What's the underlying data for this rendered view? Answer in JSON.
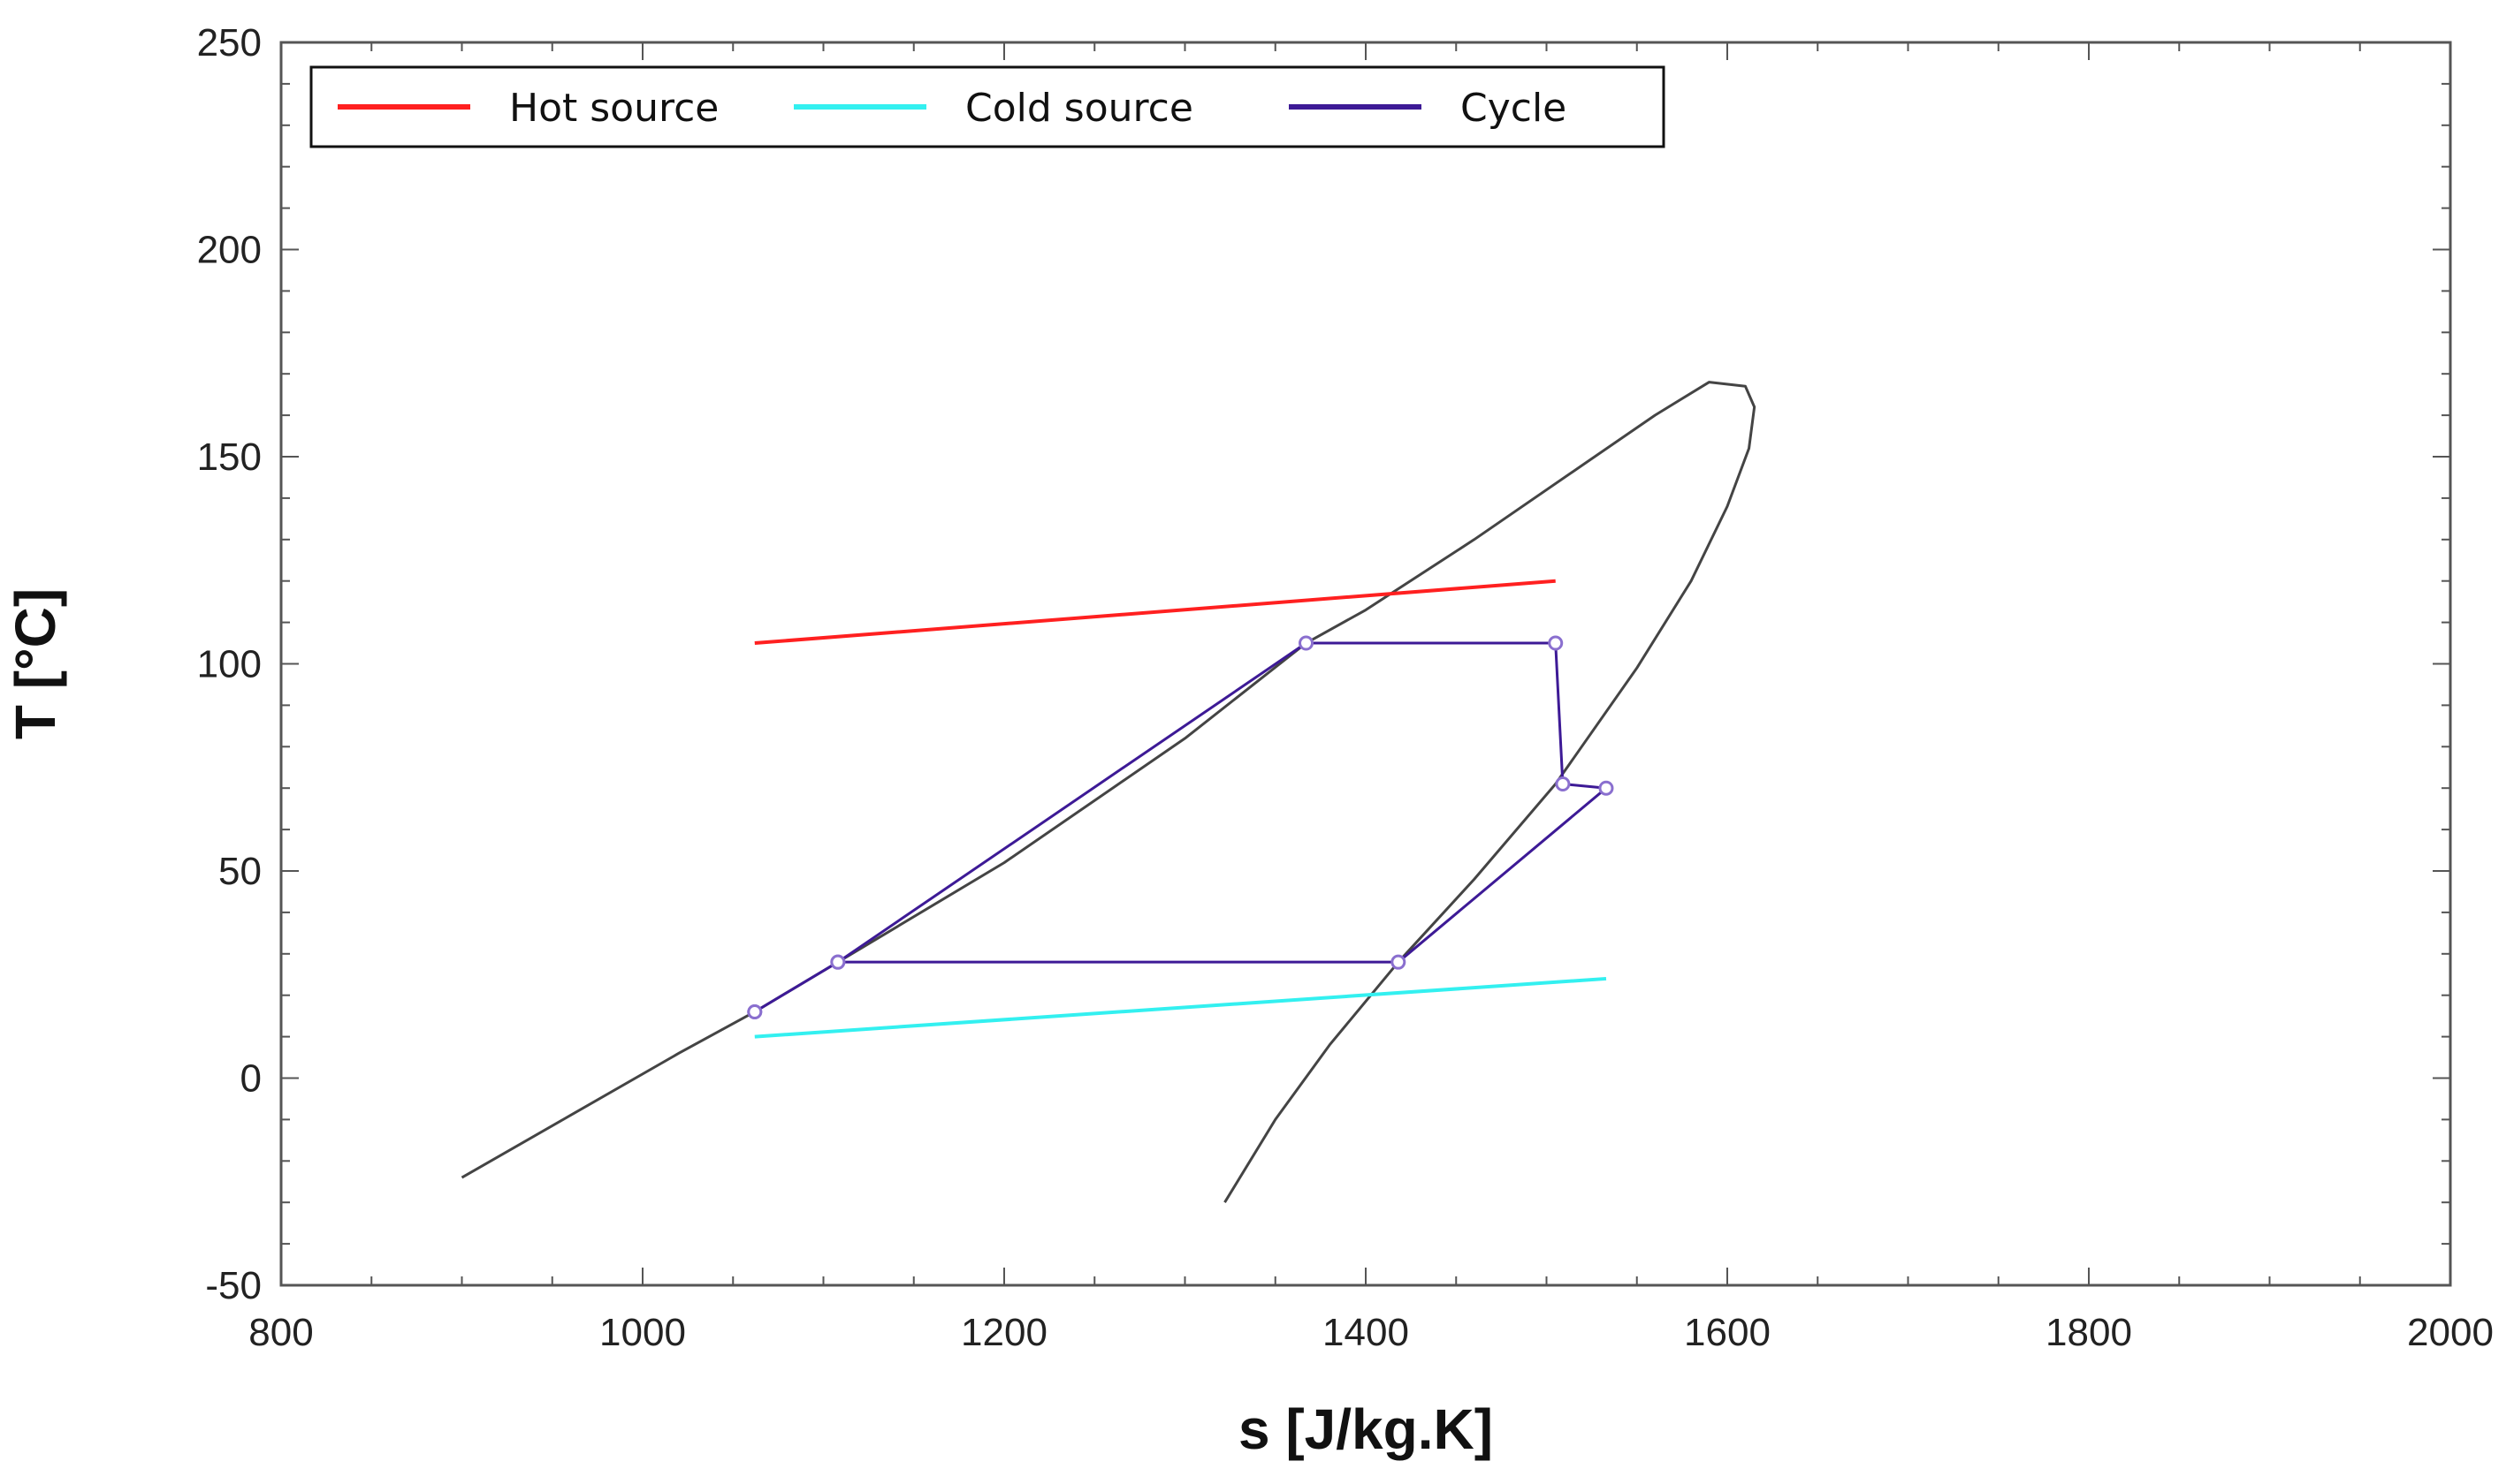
{
  "chart_data": {
    "type": "line",
    "title": "",
    "xlabel": "s [J/kg.K]",
    "ylabel": "T [°C]",
    "xlim": [
      800,
      2000
    ],
    "ylim": [
      -50,
      250
    ],
    "x_ticks": [
      800,
      1000,
      1200,
      1400,
      1600,
      1800,
      2000
    ],
    "y_ticks": [
      -50,
      0,
      50,
      100,
      150,
      200,
      250
    ],
    "x_tick_labels": [
      "800",
      "1000",
      "1200",
      "1400",
      "1600",
      "1800",
      "2000"
    ],
    "y_tick_labels": [
      "-50",
      "0",
      "50",
      "100",
      "150",
      "200",
      "250"
    ],
    "grid": false,
    "legend_position": "top-left",
    "colors": {
      "hot_source": "#ff2020",
      "cold_source": "#33f0f0",
      "cycle": "#3d1a96",
      "cycle_light": "#8a6fcf",
      "saturation_dome": "#444444",
      "frame": "#555555"
    },
    "series": [
      {
        "key": "hot_source",
        "name": "Hot source",
        "x": [
          1062,
          1505
        ],
        "y": [
          105,
          120
        ]
      },
      {
        "key": "cold_source",
        "name": "Cold source",
        "x": [
          1062,
          1533
        ],
        "y": [
          10,
          24
        ]
      },
      {
        "key": "cycle",
        "name": "Cycle",
        "markers": true,
        "x": [
          1062,
          1108,
          1367,
          1505,
          1509,
          1533,
          1418,
          1108,
          1062
        ],
        "y": [
          16,
          28,
          105,
          105,
          71,
          70,
          28,
          28,
          16
        ]
      }
    ],
    "dome": {
      "x": [
        900,
        960,
        1020,
        1062,
        1108,
        1200,
        1300,
        1367,
        1400,
        1460,
        1520,
        1560,
        1590,
        1610,
        1615,
        1612,
        1600,
        1580,
        1550,
        1505,
        1460,
        1418,
        1380,
        1350,
        1322
      ],
      "y": [
        -24,
        -9,
        6,
        16,
        28,
        52,
        82,
        105,
        113,
        130,
        148,
        160,
        168,
        167,
        162,
        152,
        138,
        120,
        99,
        71,
        48,
        28,
        8,
        -10,
        -30
      ]
    }
  }
}
